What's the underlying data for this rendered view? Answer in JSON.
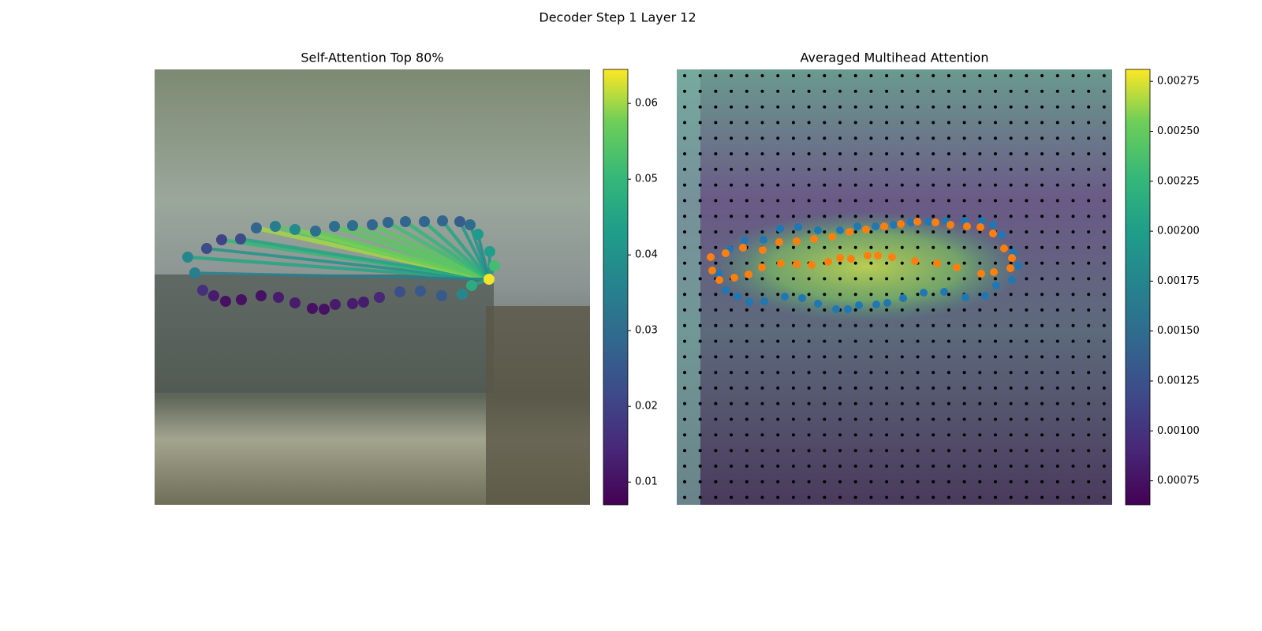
{
  "title": "Decoder Step 1 Layer 12",
  "chart_data": [
    {
      "type": "scatter",
      "title": "Self-Attention Top 80%",
      "xlim": [
        0,
        552
      ],
      "ylim": [
        552,
        0
      ],
      "x": [
        42,
        66,
        85,
        109,
        129,
        153,
        178,
        204,
        228,
        251,
        276,
        296,
        318,
        342,
        365,
        387,
        400,
        410,
        425,
        431,
        424,
        402,
        390,
        364,
        337,
        311,
        285,
        265,
        251,
        229,
        215,
        200,
        178,
        157,
        135,
        110,
        90,
        75,
        61,
        51
      ],
      "y": [
        238,
        227,
        216,
        215,
        201,
        199,
        203,
        205,
        199,
        198,
        197,
        194,
        193,
        193,
        192,
        193,
        197,
        209,
        231,
        249,
        266,
        274,
        285,
        287,
        281,
        282,
        289,
        295,
        297,
        298,
        304,
        303,
        296,
        289,
        287,
        292,
        294,
        287,
        280,
        258
      ],
      "values": [
        0.037,
        0.022,
        0.02,
        0.022,
        0.028,
        0.034,
        0.038,
        0.03,
        0.03,
        0.03,
        0.028,
        0.028,
        0.028,
        0.028,
        0.028,
        0.026,
        0.03,
        0.042,
        0.043,
        0.052,
        0.064,
        0.047,
        0.037,
        0.025,
        0.025,
        0.023,
        0.014,
        0.012,
        0.012,
        0.012,
        0.01,
        0.01,
        0.012,
        0.012,
        0.01,
        0.01,
        0.01,
        0.012,
        0.016,
        0.035
      ],
      "link_values": [
        0.045,
        0.04,
        0.05,
        0.045,
        0.06,
        0.055,
        0.058,
        0.056,
        0.055,
        0.055,
        0.055,
        0.052,
        0.05,
        0.048,
        0.045,
        0.042,
        0.04,
        0.038,
        0.04,
        0.04,
        null,
        0.045,
        null,
        null,
        null,
        null,
        null,
        null,
        null,
        null,
        null,
        null,
        null,
        null,
        null,
        null,
        null,
        null,
        null,
        0.035
      ],
      "clim": [
        0.007,
        0.0645
      ],
      "cticks": [
        0.01,
        0.02,
        0.03,
        0.04,
        0.05,
        0.06
      ]
    },
    {
      "type": "heatmap-overlay",
      "title": "Averaged Multihead Attention",
      "xlim": [
        0,
        552
      ],
      "ylim": [
        552,
        0
      ],
      "series": [
        {
          "color": "#1f77b4",
          "x": [
            67,
            86,
            110,
            131,
            154,
            179,
            207,
            229,
            252,
            275,
            297,
            319,
            341,
            365,
            387,
            401,
            412,
            427,
            433,
            425,
            405,
            391,
            366,
            339,
            313,
            287,
            267,
            253,
            231,
            217,
            202,
            179,
            159,
            137,
            111,
            92,
            77,
            62,
            53
          ],
          "y": [
            228,
            217,
            216,
            202,
            200,
            204,
            204,
            199,
            199,
            197,
            194,
            193,
            192,
            192,
            192,
            197,
            210,
            232,
            249,
            267,
            274,
            287,
            289,
            282,
            283,
            290,
            296,
            298,
            299,
            304,
            304,
            297,
            290,
            288,
            294,
            295,
            288,
            280,
            259
          ]
        },
        {
          "color": "#ff7f0e",
          "x": [
            43,
            62,
            84,
            109,
            130,
            152,
            174,
            197,
            219,
            240,
            263,
            284,
            305,
            328,
            347,
            368,
            385,
            401,
            415,
            425,
            423,
            402,
            386,
            355,
            330,
            302,
            273,
            255,
            242,
            221,
            207,
            192,
            171,
            152,
            132,
            108,
            91,
            73,
            54,
            45
          ],
          "y": [
            238,
            233,
            226,
            229,
            219,
            218,
            215,
            212,
            206,
            203,
            199,
            196,
            193,
            194,
            197,
            199,
            200,
            208,
            227,
            239,
            252,
            257,
            259,
            251,
            246,
            243,
            238,
            236,
            236,
            240,
            239,
            244,
            248,
            247,
            246,
            251,
            260,
            264,
            267,
            255
          ]
        }
      ],
      "clim": [
        0.00063,
        0.00281
      ],
      "cticks": [
        0.00075,
        {
          "value": 0.001,
          "label": "0.00100"
        },
        0.00125,
        {
          "value": 0.0015,
          "label": "0.00150"
        },
        0.00175,
        {
          "value": 0.002,
          "label": "0.00200"
        },
        0.00225,
        {
          "value": 0.0025,
          "label": "0.00250"
        },
        0.00275
      ]
    }
  ]
}
